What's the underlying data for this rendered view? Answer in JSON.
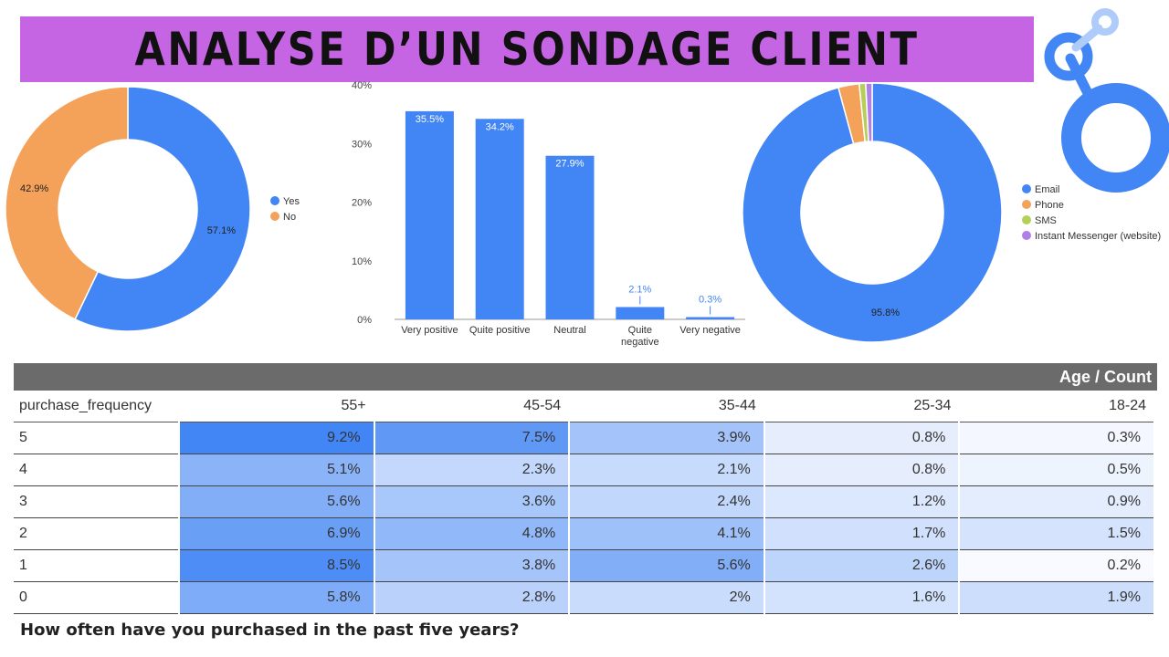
{
  "title": "ANALYSE D’UN SONDAGE CLIENT",
  "question": "How often have you purchased in the past five years?",
  "colors": {
    "banner": "#c565e3",
    "blue": "#4285f4",
    "orange": "#f4a15a",
    "green": "#b5cf5a",
    "purple": "#b180e6",
    "table_header": "#6b6b6b"
  },
  "logo": {
    "icon": "looker-studio-logo-icon"
  },
  "chart_data": [
    {
      "type": "pie",
      "variant": "donut",
      "legend_position": "right",
      "slices": [
        {
          "label": "Yes",
          "value": 57.1,
          "display": "57.1%",
          "color": "#4285f4"
        },
        {
          "label": "No",
          "value": 42.9,
          "display": "42.9%",
          "color": "#f4a15a"
        }
      ]
    },
    {
      "type": "bar",
      "categories": [
        "Very positive",
        "Quite positive",
        "Neutral",
        "Quite negative",
        "Very negative"
      ],
      "category_lines": [
        [
          "Very positive"
        ],
        [
          "Quite positive"
        ],
        [
          "Neutral"
        ],
        [
          "Quite",
          "negative"
        ],
        [
          "Very negative"
        ]
      ],
      "values": [
        35.5,
        34.2,
        27.9,
        2.1,
        0.3
      ],
      "labels": [
        "35.5%",
        "34.2%",
        "27.9%",
        "2.1%",
        "0.3%"
      ],
      "ylim": [
        0,
        40
      ],
      "yticks": [
        0,
        10,
        20,
        30,
        40
      ],
      "ytick_labels": [
        "0%",
        "10%",
        "20%",
        "30%",
        "40%"
      ],
      "grid": false,
      "color": "#4285f4"
    },
    {
      "type": "pie",
      "variant": "donut",
      "legend_position": "right",
      "slices": [
        {
          "label": "Email",
          "value": 95.8,
          "display": "95.8%",
          "color": "#4285f4"
        },
        {
          "label": "Phone",
          "value": 2.6,
          "display": "",
          "color": "#f4a15a"
        },
        {
          "label": "SMS",
          "value": 0.8,
          "display": "",
          "color": "#b5cf5a"
        },
        {
          "label": "Instant Messenger (website)",
          "value": 0.8,
          "display": "",
          "color": "#b180e6"
        }
      ]
    },
    {
      "type": "heatmap",
      "header": "Age / Count",
      "row_field": "purchase_frequency",
      "columns": [
        "55+",
        "45-54",
        "35-44",
        "25-34",
        "18-24"
      ],
      "rows": [
        {
          "label": "5",
          "values": [
            9.2,
            7.5,
            3.9,
            0.8,
            0.3
          ],
          "display": [
            "9.2%",
            "7.5%",
            "3.9%",
            "0.8%",
            "0.3%"
          ]
        },
        {
          "label": "4",
          "values": [
            5.1,
            2.3,
            2.1,
            0.8,
            0.5
          ],
          "display": [
            "5.1%",
            "2.3%",
            "2.1%",
            "0.8%",
            "0.5%"
          ]
        },
        {
          "label": "3",
          "values": [
            5.6,
            3.6,
            2.4,
            1.2,
            0.9
          ],
          "display": [
            "5.6%",
            "3.6%",
            "2.4%",
            "1.2%",
            "0.9%"
          ]
        },
        {
          "label": "2",
          "values": [
            6.9,
            4.8,
            4.1,
            1.7,
            1.5
          ],
          "display": [
            "6.9%",
            "4.8%",
            "4.1%",
            "1.7%",
            "1.5%"
          ]
        },
        {
          "label": "1",
          "values": [
            8.5,
            3.8,
            5.6,
            2.6,
            0.2
          ],
          "display": [
            "8.5%",
            "3.8%",
            "5.6%",
            "2.6%",
            "0.2%"
          ]
        },
        {
          "label": "0",
          "values": [
            5.8,
            2.8,
            2,
            1.6,
            1.9
          ],
          "display": [
            "5.8%",
            "2.8%",
            "2%",
            "1.6%",
            "1.9%"
          ]
        }
      ]
    }
  ]
}
